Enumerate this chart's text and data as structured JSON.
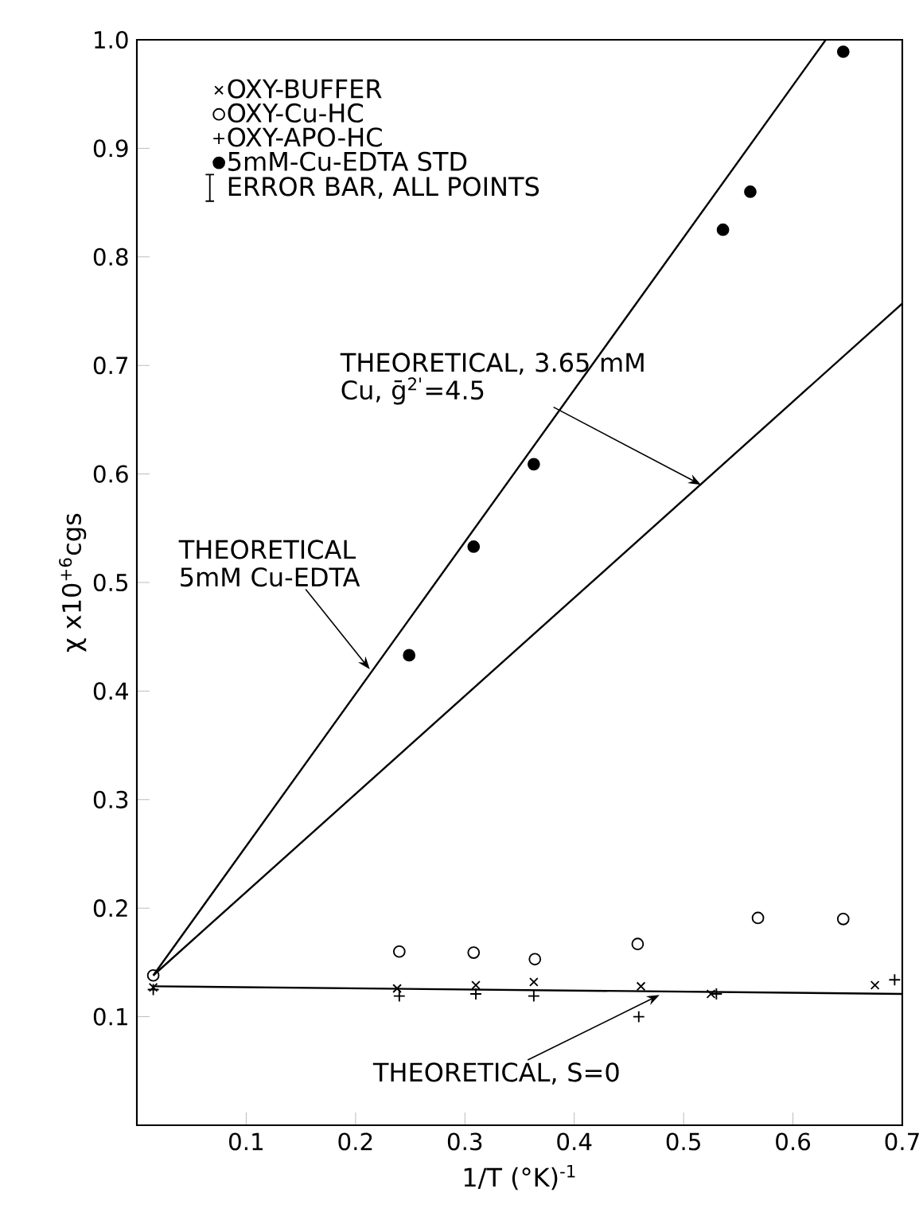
{
  "chart_data": {
    "type": "scatter",
    "xlabel": "1/T (°K)$^{-1}$",
    "ylabel": "χ x10$^{+6}$cgs",
    "xlim": [
      0,
      0.7
    ],
    "ylim": [
      0,
      1.0
    ],
    "xticks": [
      0.1,
      0.2,
      0.3,
      0.4,
      0.5,
      0.6,
      0.7
    ],
    "yticks": [
      0.1,
      0.2,
      0.3,
      0.4,
      0.5,
      0.6,
      0.7,
      0.8,
      0.9,
      {
        "value": 1.0,
        "label": "1.0"
      }
    ],
    "legend": "top left",
    "series": [
      {
        "name": "OXY-BUFFER",
        "marker": "cross",
        "color": "#000000",
        "x": [
          0.015,
          0.238,
          0.31,
          0.363,
          0.461,
          0.525,
          0.675
        ],
        "values": [
          0.127,
          0.126,
          0.129,
          0.132,
          0.128,
          0.121,
          0.129
        ]
      },
      {
        "name": "OXY-Cu-HC",
        "marker": "circle_open",
        "color": "#000000",
        "x": [
          0.015,
          0.24,
          0.308,
          0.364,
          0.458,
          0.568,
          0.646
        ],
        "values": [
          0.138,
          0.16,
          0.159,
          0.153,
          0.167,
          0.191,
          0.19
        ]
      },
      {
        "name": "OXY-APO-HC",
        "marker": "plus",
        "color": "#000000",
        "x": [
          0.015,
          0.24,
          0.31,
          0.363,
          0.459,
          0.53,
          0.693
        ],
        "values": [
          0.125,
          0.119,
          0.121,
          0.119,
          0.1,
          0.121,
          0.134
        ]
      },
      {
        "name": "5mM-Cu-EDTA STD",
        "marker": "circle",
        "color": "#000000",
        "x": [
          0.249,
          0.308,
          0.363,
          0.536,
          0.561,
          0.646
        ],
        "values": [
          0.433,
          0.533,
          0.609,
          0.825,
          0.86,
          0.989
        ]
      },
      {
        "type": "line",
        "line_style": "solid",
        "color": "#000000",
        "x": [
          0.015,
          0.63
        ],
        "values": [
          0.138,
          1.0
        ]
      },
      {
        "type": "line",
        "line_style": "solid",
        "color": "#000000",
        "x": [
          0.015,
          0.7
        ],
        "values": [
          0.138,
          0.757
        ]
      },
      {
        "type": "line",
        "line_style": "solid",
        "color": "#000000",
        "x": [
          0.015,
          0.7
        ],
        "values": [
          0.128,
          0.121
        ]
      }
    ],
    "annotations": [
      "ERROR BAR, ALL POINTS",
      {
        "text": "THEORETICAL, 3.65 mM Cu, ḡ$^{2'}$=4.5",
        "x": 0.516,
        "y": 0.59
      },
      {
        "text": "THEORETICAL 5mM Cu-EDTA",
        "x": 0.213,
        "y": 0.42
      },
      {
        "text": "THEORETICAL, S=0",
        "x": 0.478,
        "y": 0.12
      }
    ]
  }
}
